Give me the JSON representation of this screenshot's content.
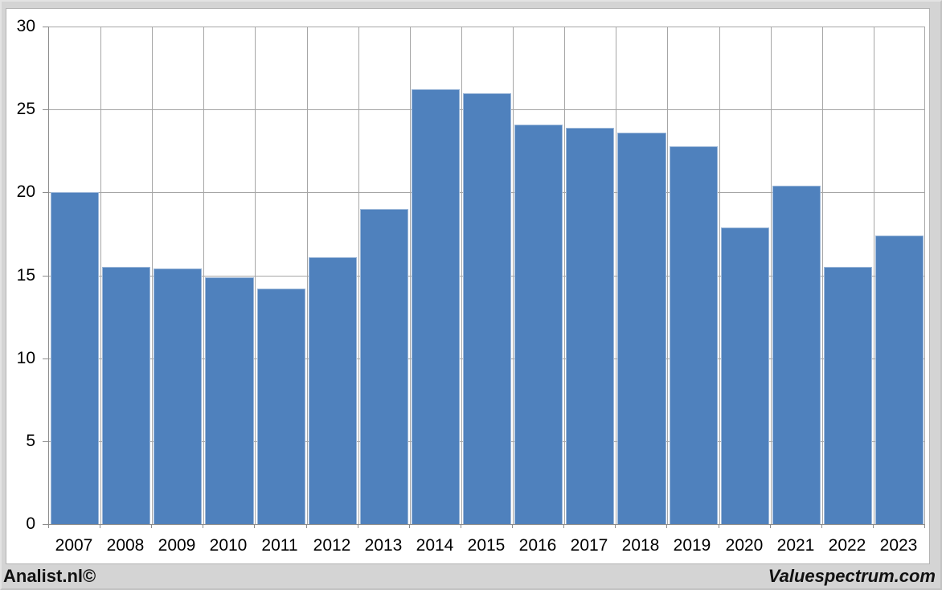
{
  "chart_data": {
    "type": "bar",
    "title": "",
    "xlabel": "",
    "ylabel": "",
    "categories": [
      "2007",
      "2008",
      "2009",
      "2010",
      "2011",
      "2012",
      "2013",
      "2014",
      "2015",
      "2016",
      "2017",
      "2018",
      "2019",
      "2020",
      "2021",
      "2022",
      "2023"
    ],
    "values": [
      20.0,
      15.5,
      15.4,
      14.9,
      14.2,
      16.1,
      19.0,
      26.2,
      26.0,
      24.1,
      23.9,
      23.6,
      22.8,
      17.9,
      20.4,
      15.5,
      17.4
    ],
    "ylim": [
      0,
      30
    ],
    "yticks": [
      0,
      5,
      10,
      15,
      20,
      25,
      30
    ],
    "grid": true,
    "legend": "none"
  },
  "footer": {
    "left_brand": "Analist.nl©",
    "right_brand": "Valuespectrum.com"
  },
  "colors": {
    "bar": "#4f81bd",
    "bar_edge": "#9db8d9",
    "gridline": "#a6a6a6",
    "axis": "#8c8c8c",
    "plot_bg": "#ffffff",
    "page_bg": "#d4d4d4",
    "text": "#000000"
  }
}
